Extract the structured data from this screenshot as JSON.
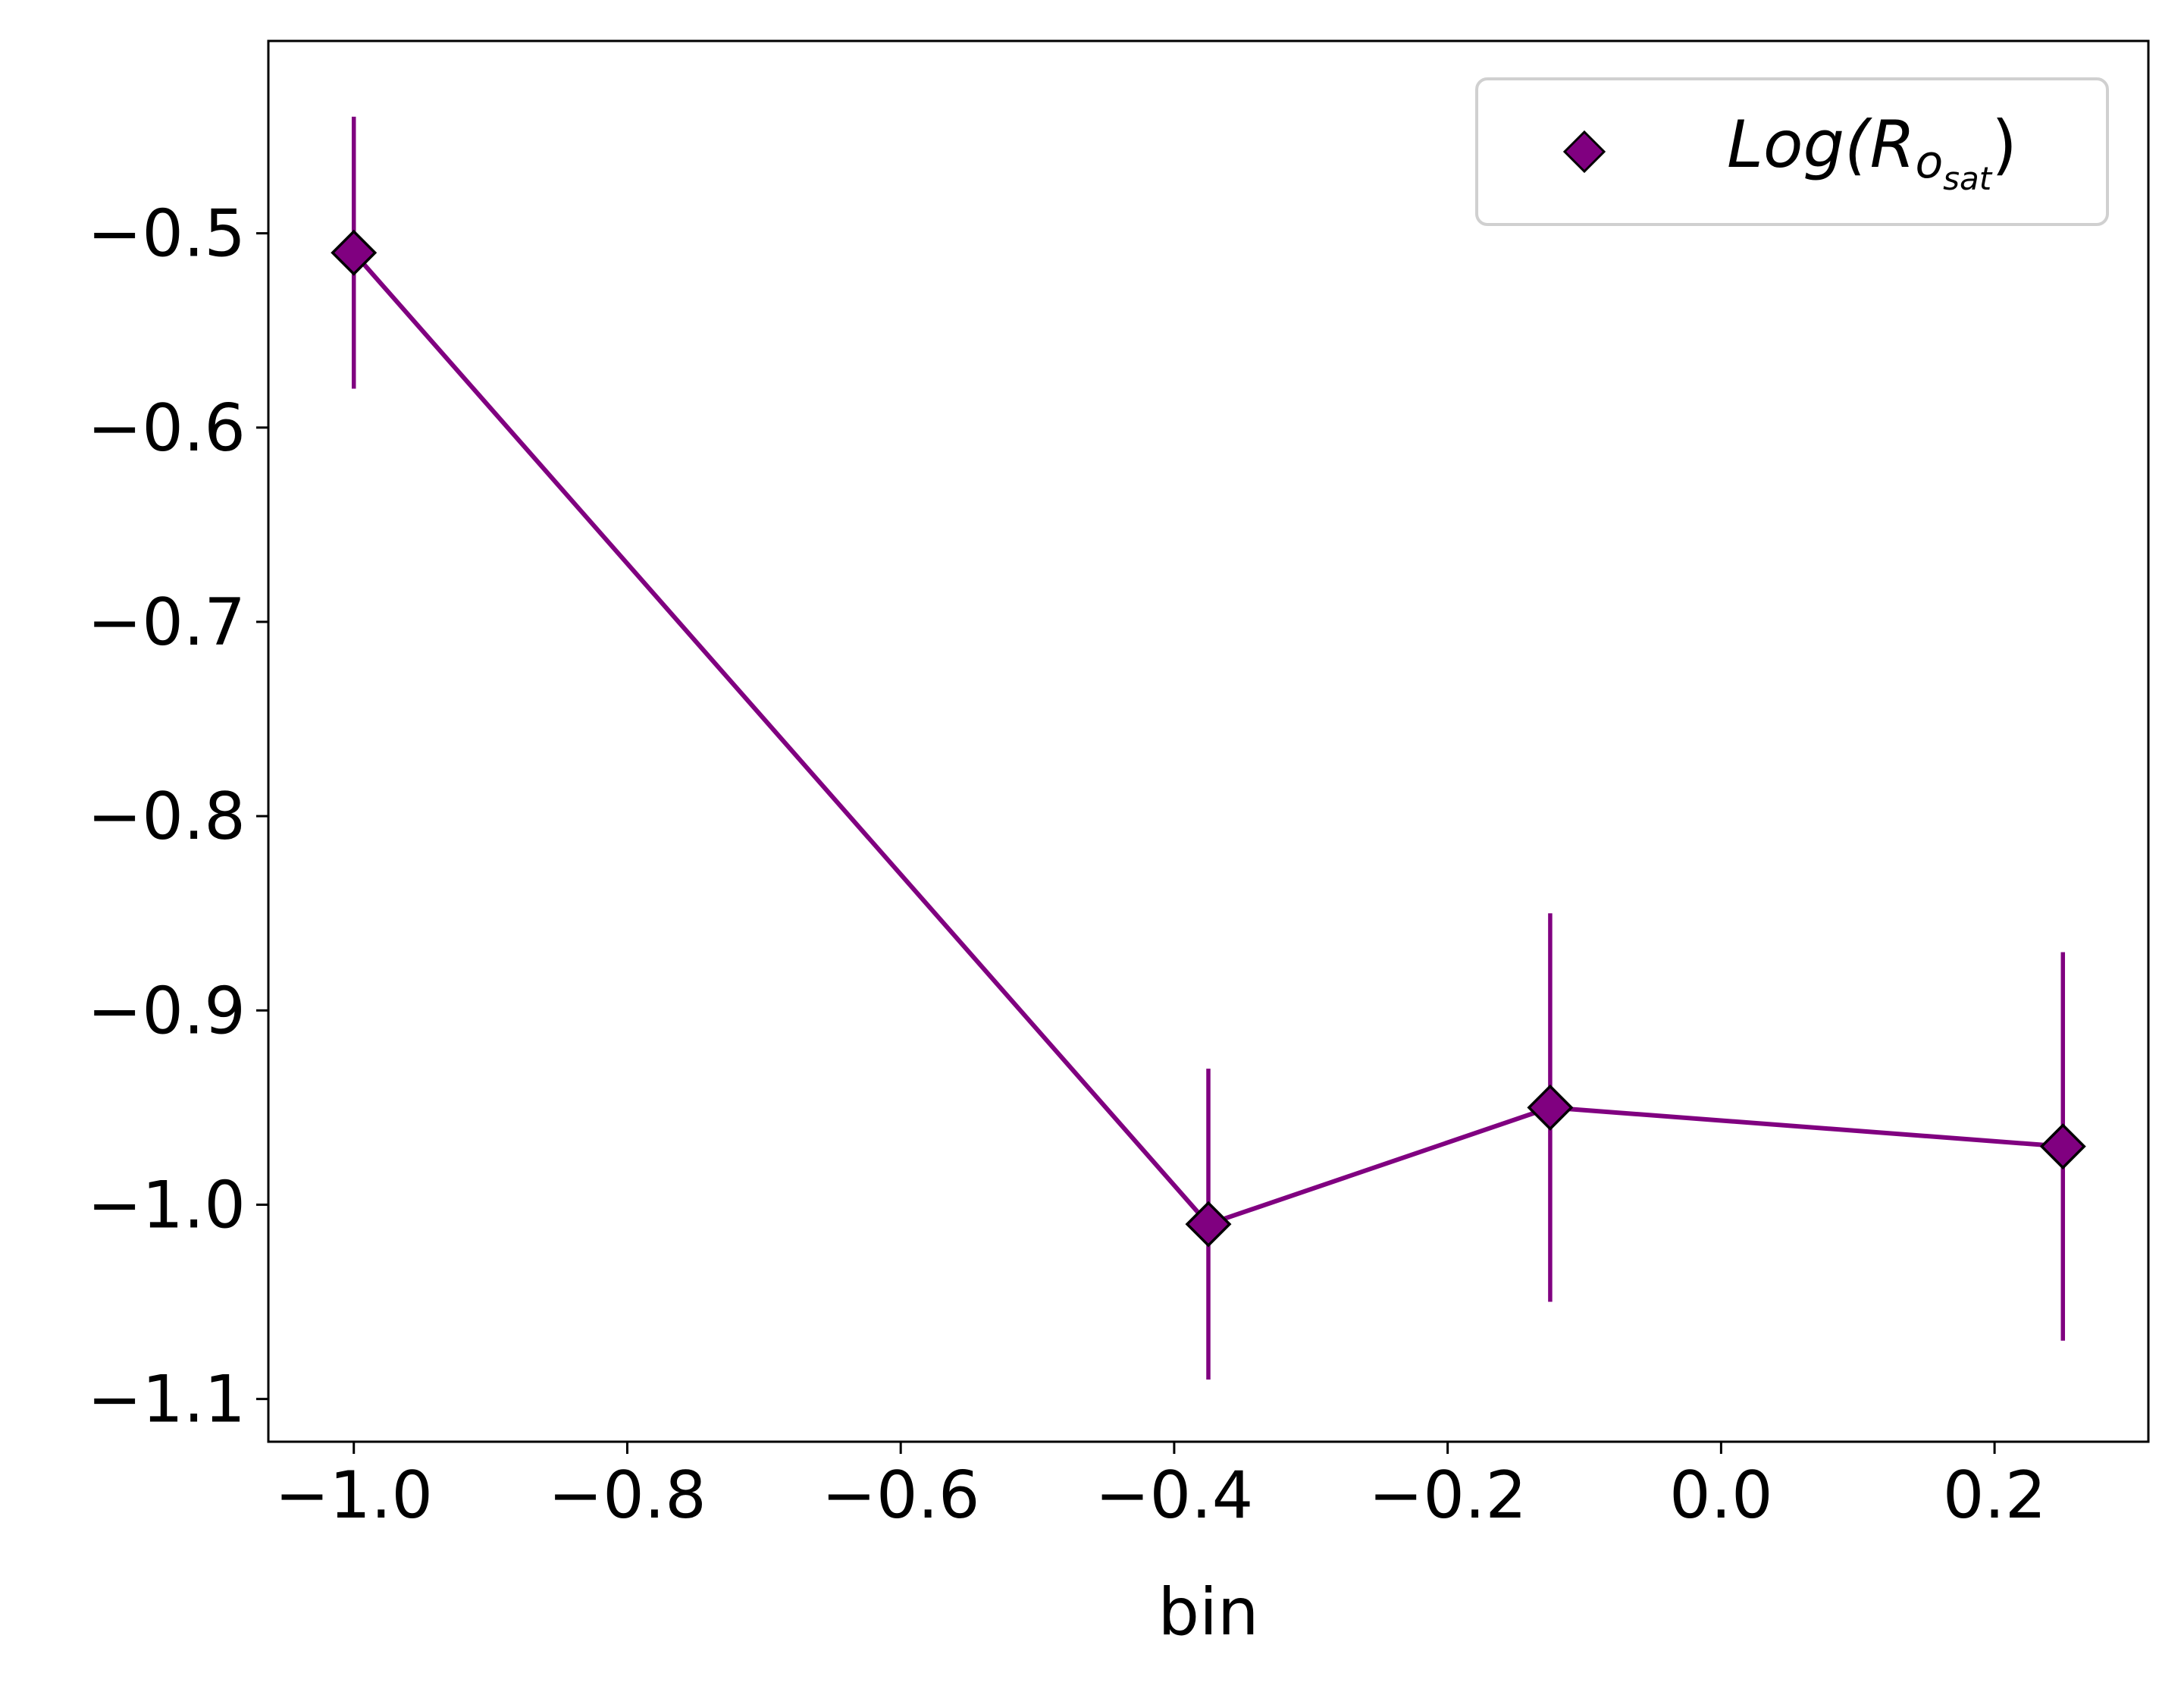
{
  "chart_data": {
    "type": "line",
    "title": "",
    "xlabel": "bin",
    "ylabel": "",
    "xlim": [
      -1.0625,
      0.3125
    ],
    "ylim": [
      -1.122,
      -0.401
    ],
    "x_ticks": [
      -1.0,
      -0.8,
      -0.6,
      -0.4,
      -0.2,
      0.0,
      0.2
    ],
    "x_tick_labels": [
      "−1.0",
      "−0.8",
      "−0.6",
      "−0.4",
      "−0.2",
      "0.0",
      "0.2"
    ],
    "y_ticks": [
      -0.5,
      -0.6,
      -0.7,
      -0.8,
      -0.9,
      -1.0,
      -1.1
    ],
    "y_tick_labels": [
      "−0.5",
      "−0.6",
      "−0.7",
      "−0.8",
      "−0.9",
      "−1.0",
      "−1.1"
    ],
    "grid": false,
    "legend_position": "top-right",
    "series": [
      {
        "name": "Log(R_o_sat)",
        "legend_label": {
          "main": "Log(R",
          "sub_o": "o",
          "sub_sat": "sat",
          "close": ")"
        },
        "color": "#800080",
        "marker": "diamond",
        "marker_edge_color": "#000000",
        "x": [
          -1.0,
          -0.375,
          -0.125,
          0.25
        ],
        "y": [
          -0.51,
          -1.01,
          -0.95,
          -0.97
        ],
        "yerr": [
          0.07,
          0.08,
          0.1,
          0.1
        ]
      }
    ]
  }
}
